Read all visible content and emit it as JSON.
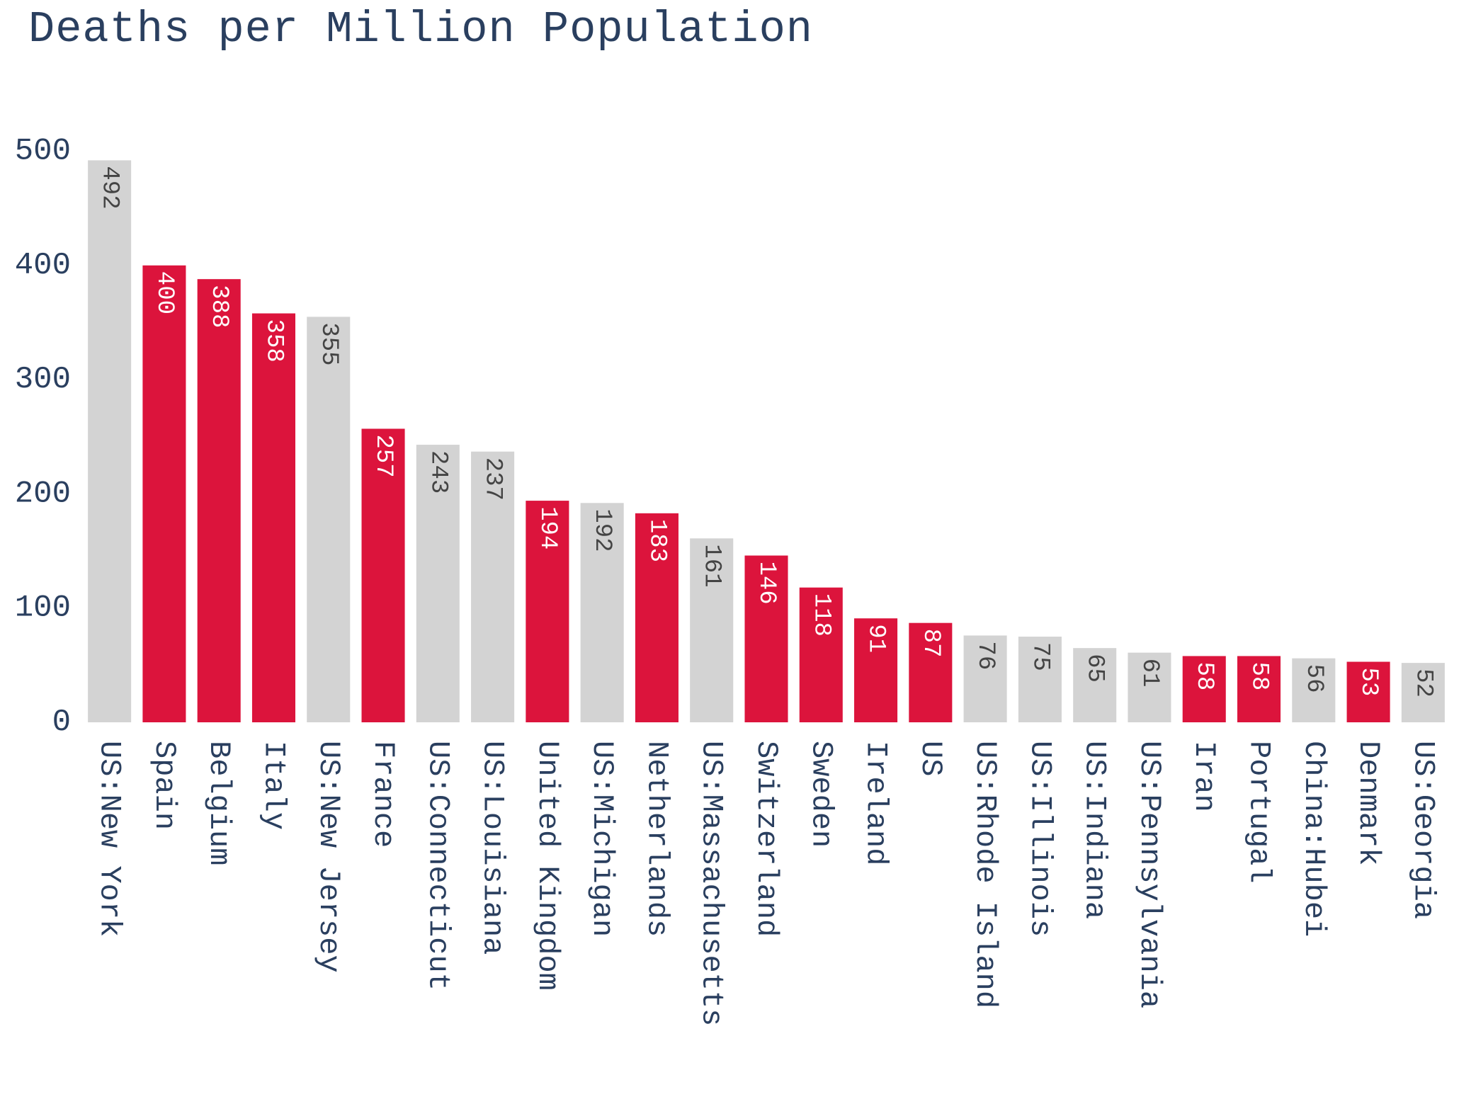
{
  "chart_data": {
    "type": "bar",
    "title": "Deaths per Million Population",
    "xlabel": "",
    "ylabel": "",
    "ylim": [
      0,
      500
    ],
    "yticks": [
      0,
      100,
      200,
      300,
      400,
      500
    ],
    "grid": false,
    "categories": [
      "US:New York",
      "Spain",
      "Belgium",
      "Italy",
      "US:New Jersey",
      "France",
      "US:Connecticut",
      "US:Louisiana",
      "United Kingdom",
      "US:Michigan",
      "Netherlands",
      "US:Massachusetts",
      "Switzerland",
      "Sweden",
      "Ireland",
      "US",
      "US:Rhode Island",
      "US:Illinois",
      "US:Indiana",
      "US:Pennsylvania",
      "Iran",
      "Portugal",
      "China:Hubei",
      "Denmark",
      "US:Georgia"
    ],
    "values": [
      492,
      400,
      388,
      358,
      355,
      257,
      243,
      237,
      194,
      192,
      183,
      161,
      146,
      118,
      91,
      87,
      76,
      75,
      65,
      61,
      58,
      58,
      56,
      53,
      52
    ],
    "bar_colors": [
      "#d3d3d3",
      "#dc143c",
      "#dc143c",
      "#dc143c",
      "#d3d3d3",
      "#dc143c",
      "#d3d3d3",
      "#d3d3d3",
      "#dc143c",
      "#d3d3d3",
      "#dc143c",
      "#d3d3d3",
      "#dc143c",
      "#dc143c",
      "#dc143c",
      "#dc143c",
      "#d3d3d3",
      "#d3d3d3",
      "#d3d3d3",
      "#d3d3d3",
      "#dc143c",
      "#dc143c",
      "#d3d3d3",
      "#dc143c",
      "#d3d3d3"
    ],
    "label_color_on_red": "#ffffff",
    "label_color_on_gray": "#444444",
    "axis_text_color": "#2a3f5f"
  }
}
